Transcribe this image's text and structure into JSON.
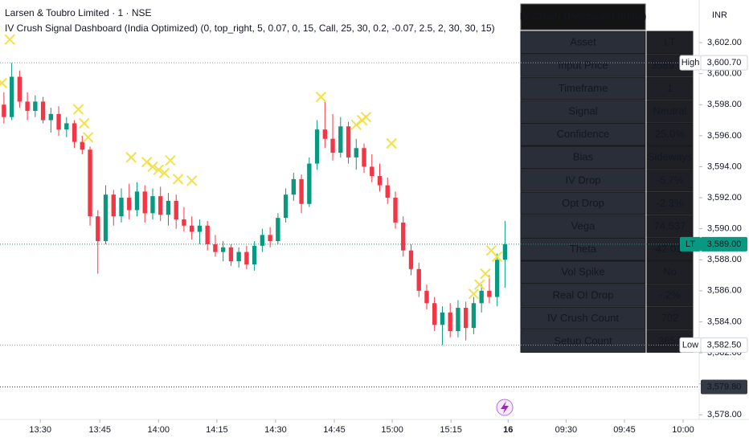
{
  "header": {
    "symbol": "Larsen & Toubro Limited · 1 · NSE",
    "indicator": "IV Crush Signal Dashboard (India Optimized) (0, top_right, 5, 0.07, 0, 15, Call, 25, 30, 0.2, -0.07, 2.5, 2, 30, 30, 15)",
    "currency": "INR"
  },
  "chart_data": {
    "type": "candlestick",
    "up_color": "#089981",
    "down_color": "#f23645",
    "signal_color": "#f2e14c",
    "x": [
      1,
      3,
      5,
      7,
      9,
      11,
      13,
      15,
      17,
      19,
      21,
      23,
      25,
      27,
      29,
      31,
      33,
      35,
      37,
      39,
      41,
      43,
      45,
      47,
      49,
      51,
      53,
      55,
      57,
      59,
      61,
      63,
      65,
      67,
      69,
      71,
      73,
      75,
      77,
      79,
      81,
      83,
      85,
      87,
      89,
      91,
      93,
      95,
      97,
      99,
      101,
      103,
      105,
      107,
      109,
      111,
      113,
      115,
      117,
      119,
      121,
      123,
      125,
      127,
      129
    ],
    "open": [
      3598.0,
      3597.2,
      3599.8,
      3598.2,
      3597.6,
      3598.2,
      3597.0,
      3597.4,
      3596.4,
      3596.8,
      3595.6,
      3595.1,
      3590.8,
      3589.2,
      3592.2,
      3590.8,
      3592.0,
      3591.2,
      3592.4,
      3591.0,
      3592.1,
      3590.9,
      3591.8,
      3590.6,
      3590.2,
      3589.8,
      3590.2,
      3589.0,
      3588.5,
      3588.8,
      3587.9,
      3588.5,
      3587.7,
      3588.9,
      3589.6,
      3589.2,
      3590.7,
      3592.2,
      3593.2,
      3591.6,
      3594.2,
      3596.4,
      3595.8,
      3594.9,
      3596.6,
      3594.6,
      3595.2,
      3594.0,
      3593.4,
      3592.8,
      3592.0,
      3590.4,
      3588.6,
      3587.4,
      3586.0,
      3585.2,
      3583.8,
      3584.6,
      3583.4,
      3584.9,
      3583.6,
      3585.2,
      3586.0,
      3585.6,
      3588.0
    ],
    "high": [
      3598.8,
      3600.7,
      3600.2,
      3598.8,
      3598.6,
      3598.5,
      3597.8,
      3597.9,
      3597.2,
      3597.0,
      3596.0,
      3595.3,
      3591.2,
      3592.8,
      3592.5,
      3592.6,
      3592.9,
      3593.0,
      3592.8,
      3592.6,
      3592.7,
      3592.3,
      3592.2,
      3591.4,
      3590.8,
      3590.6,
      3590.5,
      3589.6,
      3589.2,
      3589.0,
      3588.8,
      3588.9,
      3589.2,
      3590.0,
      3590.1,
      3591.0,
      3592.6,
      3593.6,
      3593.5,
      3594.6,
      3597.0,
      3598.3,
      3597.4,
      3597.2,
      3596.9,
      3595.8,
      3595.5,
      3594.8,
      3594.2,
      3593.3,
      3592.4,
      3590.8,
      3589.0,
      3587.8,
      3586.4,
      3585.6,
      3585.0,
      3585.2,
      3585.4,
      3585.3,
      3585.6,
      3586.4,
      3587.0,
      3588.4,
      3590.5
    ],
    "low": [
      3596.8,
      3597.0,
      3597.8,
      3597.0,
      3597.2,
      3596.8,
      3596.2,
      3596.0,
      3595.9,
      3595.2,
      3594.8,
      3590.2,
      3587.1,
      3589.0,
      3590.2,
      3590.4,
      3590.6,
      3590.8,
      3590.4,
      3590.6,
      3590.5,
      3590.2,
      3590.0,
      3589.8,
      3589.3,
      3589.0,
      3588.6,
      3588.2,
      3587.9,
      3587.6,
      3587.5,
      3587.4,
      3587.3,
      3588.5,
      3588.8,
      3589.0,
      3590.4,
      3591.8,
      3591.0,
      3591.4,
      3593.8,
      3595.2,
      3594.4,
      3594.6,
      3594.2,
      3593.8,
      3593.6,
      3593.0,
      3592.4,
      3591.6,
      3590.0,
      3588.2,
      3587.0,
      3585.6,
      3584.8,
      3583.4,
      3582.5,
      3583.0,
      3583.0,
      3582.8,
      3583.2,
      3584.6,
      3585.2,
      3585.0,
      3586.2
    ],
    "close": [
      3597.2,
      3599.8,
      3598.2,
      3597.6,
      3598.2,
      3597.0,
      3597.4,
      3596.4,
      3596.8,
      3595.6,
      3595.1,
      3590.8,
      3589.2,
      3592.2,
      3590.8,
      3592.0,
      3591.2,
      3592.4,
      3591.0,
      3592.1,
      3590.9,
      3591.8,
      3590.6,
      3590.2,
      3589.8,
      3590.2,
      3589.0,
      3588.5,
      3588.8,
      3587.9,
      3588.5,
      3587.7,
      3588.9,
      3589.6,
      3589.2,
      3590.7,
      3592.2,
      3593.2,
      3591.6,
      3594.2,
      3596.4,
      3595.8,
      3594.9,
      3596.6,
      3594.6,
      3595.2,
      3594.0,
      3593.4,
      3592.8,
      3592.0,
      3590.4,
      3588.6,
      3587.4,
      3586.0,
      3585.2,
      3583.8,
      3584.6,
      3583.4,
      3584.9,
      3583.6,
      3585.2,
      3586.0,
      3585.6,
      3588.0,
      3589.0
    ],
    "signal_x": [
      2.5,
      0.5,
      20,
      21.5,
      22.5,
      33.5,
      37.5,
      39,
      40.5,
      42,
      43.5,
      45.5,
      49,
      82,
      91,
      92.5,
      93.5,
      100,
      121,
      122.5,
      124,
      125.5,
      127
    ],
    "signal_y": [
      3602.2,
      3599.4,
      3597.7,
      3596.8,
      3595.9,
      3594.6,
      3594.3,
      3594.0,
      3593.8,
      3593.6,
      3594.4,
      3593.2,
      3593.1,
      3598.5,
      3596.7,
      3597.0,
      3597.2,
      3595.5,
      3585.8,
      3586.4,
      3587.1,
      3588.6,
      3588.2
    ],
    "xlim": [
      0,
      178.6
    ],
    "xticks": [
      {
        "value": 10.3,
        "label": "13:30"
      },
      {
        "value": 25.5,
        "label": "13:45"
      },
      {
        "value": 40.5,
        "label": "14:00"
      },
      {
        "value": 55.4,
        "label": "14:15"
      },
      {
        "value": 70.4,
        "label": "14:30"
      },
      {
        "value": 85.4,
        "label": "14:45"
      },
      {
        "value": 100.2,
        "label": "15:00"
      },
      {
        "value": 115.2,
        "label": "15:15"
      },
      {
        "value": 129.8,
        "label": "16"
      },
      {
        "value": 144.6,
        "label": "09:30"
      },
      {
        "value": 159.5,
        "label": "09:45"
      },
      {
        "value": 174.5,
        "label": "10:00"
      }
    ],
    "ylim": [
      3577.7,
      3604.75
    ],
    "yticks": [
      {
        "value": 3578,
        "label": "3,578.00"
      },
      {
        "value": 3580,
        "label": "3,580.00"
      },
      {
        "value": 3582,
        "label": "3,582.00"
      },
      {
        "value": 3584,
        "label": "3,584.00"
      },
      {
        "value": 3586,
        "label": "3,586.00"
      },
      {
        "value": 3588,
        "label": "3,588.00"
      },
      {
        "value": 3590,
        "label": "3,590.00"
      },
      {
        "value": 3592,
        "label": "3,592.00"
      },
      {
        "value": 3594,
        "label": "3,594.00"
      },
      {
        "value": 3596,
        "label": "3,596.00"
      },
      {
        "value": 3598,
        "label": "3,598.00"
      },
      {
        "value": 3600,
        "label": "3,600.00"
      },
      {
        "value": 3602,
        "label": "3,602.00"
      }
    ],
    "price_labels": [
      {
        "name": "High",
        "value": 3600.7,
        "label": "3,600.70",
        "color": "#ffffff"
      },
      {
        "name": "LT",
        "value": 3589.0,
        "label": "3,589.00",
        "color": "#089981"
      },
      {
        "name": "Low",
        "value": 3582.5,
        "label": "3,582.50",
        "color": "#ffffff"
      },
      {
        "value": 3579.8,
        "label": "3,579.80",
        "color": "#363a45"
      }
    ]
  },
  "table": {
    "title": "IV Crush Dashboard (India)",
    "rows": [
      [
        "Asset",
        "LT"
      ],
      [
        "Input Price",
        "3589.00"
      ],
      [
        "Timeframe",
        "1"
      ],
      [
        "Signal",
        "Neutral"
      ],
      [
        "Confidence",
        "25.0%"
      ],
      [
        "Bias",
        "Sideways"
      ],
      [
        "IV Drop",
        "-5.7%"
      ],
      [
        "Opt Drop",
        "-2.3%"
      ],
      [
        "Vega",
        "74.537"
      ],
      [
        "Theta",
        "-42.014"
      ],
      [
        "Vol Spike",
        "No"
      ],
      [
        "Real OI Drop",
        "-.2%"
      ],
      [
        "IV Crush Count",
        "702"
      ],
      [
        "Setup Count",
        "3651"
      ]
    ],
    "value_colors": [
      "#ffffff",
      "#f5e62a",
      "#ffffff",
      "#22c55e",
      "#22c55e",
      "#4fa3e0",
      "#e11d1d",
      "#e11d1d",
      "#22c55e",
      "#22c55e",
      "#e11d1d",
      "#e11d1d",
      "#ffffff",
      "#ffffff"
    ]
  }
}
